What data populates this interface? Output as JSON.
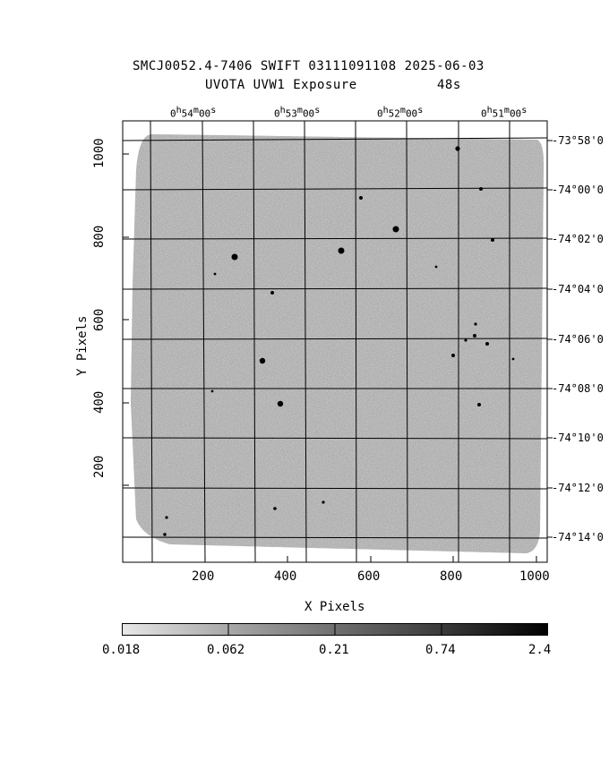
{
  "header": {
    "title_line1": "SMCJ0052.4-7406 SWIFT 03111091108 2025-06-03",
    "title_line2": "UVOTA UVW1 Exposure",
    "exposure": "48s"
  },
  "axes": {
    "xlabel": "X Pixels",
    "ylabel": "Y Pixels",
    "x_ticks": [
      "200",
      "400",
      "600",
      "800",
      "1000"
    ],
    "y_ticks": [
      "200",
      "400",
      "600",
      "800",
      "1000"
    ],
    "ra_ticks": [
      {
        "h": "0",
        "m": "54",
        "s": "00"
      },
      {
        "h": "0",
        "m": "53",
        "s": "00"
      },
      {
        "h": "0",
        "m": "52",
        "s": "00"
      },
      {
        "h": "0",
        "m": "51",
        "s": "00"
      }
    ],
    "dec_ticks": [
      "-73°58'0",
      "-74°00'0",
      "-74°02'0",
      "-74°04'0",
      "-74°06'0",
      "-74°08'0",
      "-74°10'0",
      "-74°12'0",
      "-74°14'0"
    ]
  },
  "colorbar": {
    "labels": [
      "0.018",
      "0.062",
      "0.21",
      "0.74",
      "2.4"
    ]
  },
  "colors": {
    "background": "#ffffff",
    "image_gray": "#9a9a9a",
    "grid": "#000000"
  }
}
